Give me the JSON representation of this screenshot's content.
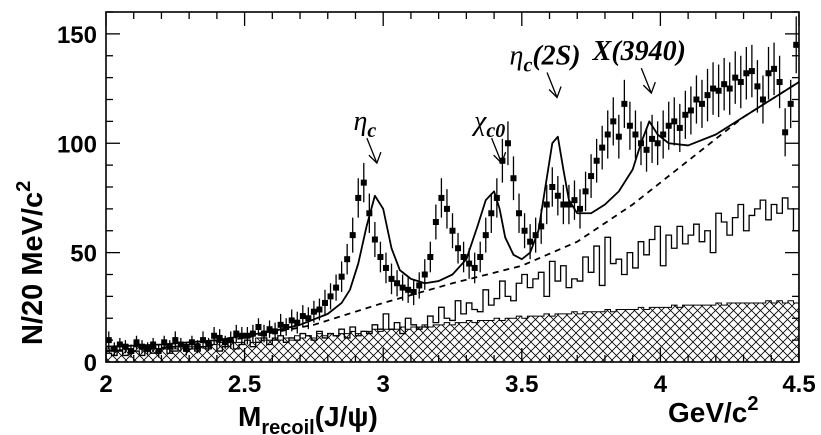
{
  "chart_data": {
    "type": "scatter",
    "xlabel_main": "M",
    "xlabel_sub": "recoil",
    "xlabel_tail": "(J/ψ)",
    "xunit_main": "GeV/c",
    "xunit_sup": "2",
    "ylabel_main": "N/20 MeV/c",
    "ylabel_sup": "2",
    "xlim": [
      2.0,
      4.5
    ],
    "ylim": [
      0,
      160
    ],
    "xticks": [
      "2",
      "2.5",
      "3",
      "3.5",
      "4",
      "4.5"
    ],
    "xtick_values": [
      2.0,
      2.5,
      3.0,
      3.5,
      4.0,
      4.5
    ],
    "yticks": [
      "0",
      "50",
      "100",
      "150"
    ],
    "ytick_values": [
      0,
      50,
      100,
      150
    ],
    "colors": {
      "ink": "#000000",
      "background": "#ffffff"
    },
    "annotations": [
      {
        "id": "etac",
        "main": "η",
        "sub": "c",
        "sup": "",
        "x": 2.97,
        "y": 90
      },
      {
        "id": "chic0",
        "main": "χ",
        "sub": "c0",
        "sup": "",
        "x": 3.42,
        "y": 90
      },
      {
        "id": "etac2s",
        "main": "η",
        "sub": "c",
        "sup": "(2S)",
        "x": 3.62,
        "y": 120
      },
      {
        "id": "x3940",
        "main": "X(3940)",
        "sub": "",
        "sup": "",
        "x": 3.96,
        "y": 122
      }
    ],
    "series": [
      {
        "role": "data",
        "x": [
          2.01,
          2.03,
          2.05,
          2.07,
          2.09,
          2.11,
          2.13,
          2.15,
          2.17,
          2.19,
          2.21,
          2.23,
          2.25,
          2.27,
          2.29,
          2.31,
          2.33,
          2.35,
          2.37,
          2.39,
          2.41,
          2.43,
          2.45,
          2.47,
          2.49,
          2.51,
          2.53,
          2.55,
          2.57,
          2.59,
          2.61,
          2.63,
          2.65,
          2.67,
          2.69,
          2.71,
          2.73,
          2.75,
          2.77,
          2.79,
          2.81,
          2.83,
          2.85,
          2.87,
          2.89,
          2.91,
          2.93,
          2.95,
          2.97,
          2.99,
          3.01,
          3.03,
          3.05,
          3.07,
          3.09,
          3.11,
          3.13,
          3.15,
          3.17,
          3.19,
          3.21,
          3.23,
          3.25,
          3.27,
          3.29,
          3.31,
          3.33,
          3.35,
          3.37,
          3.39,
          3.41,
          3.43,
          3.45,
          3.47,
          3.49,
          3.51,
          3.53,
          3.55,
          3.57,
          3.59,
          3.61,
          3.63,
          3.65,
          3.67,
          3.69,
          3.71,
          3.73,
          3.75,
          3.77,
          3.79,
          3.81,
          3.83,
          3.85,
          3.87,
          3.89,
          3.91,
          3.93,
          3.95,
          3.97,
          3.99,
          4.01,
          4.03,
          4.05,
          4.07,
          4.09,
          4.11,
          4.13,
          4.15,
          4.17,
          4.19,
          4.21,
          4.23,
          4.25,
          4.27,
          4.29,
          4.31,
          4.33,
          4.35,
          4.37,
          4.39,
          4.41,
          4.43,
          4.45,
          4.47,
          4.49
        ],
        "y": [
          10,
          6,
          8,
          7,
          5,
          9,
          7,
          6,
          8,
          5,
          9,
          7,
          10,
          8,
          6,
          9,
          7,
          10,
          8,
          12,
          11,
          9,
          10,
          13,
          12,
          12,
          13,
          16,
          13,
          15,
          14,
          17,
          16,
          19,
          18,
          21,
          20,
          23,
          24,
          27,
          30,
          34,
          39,
          47,
          58,
          75,
          82,
          68,
          56,
          48,
          43,
          38,
          36,
          34,
          33,
          32,
          35,
          40,
          48,
          64,
          75,
          70,
          60,
          52,
          48,
          45,
          43,
          48,
          58,
          68,
          75,
          92,
          100,
          84,
          68,
          60,
          55,
          58,
          62,
          72,
          80,
          76,
          72,
          72,
          74,
          70,
          78,
          85,
          92,
          98,
          104,
          110,
          103,
          118,
          108,
          104,
          100,
          97,
          102,
          100,
          104,
          108,
          110,
          107,
          113,
          115,
          120,
          118,
          122,
          125,
          124,
          127,
          125,
          130,
          128,
          132,
          133,
          126,
          120,
          132,
          134,
          128,
          105,
          118,
          145
        ],
        "yerr": [
          4,
          3,
          3,
          3,
          3,
          3,
          3,
          3,
          3,
          3,
          3,
          3,
          4,
          3,
          3,
          3,
          3,
          4,
          3,
          4,
          4,
          3,
          4,
          4,
          4,
          4,
          4,
          4,
          4,
          4,
          4,
          5,
          4,
          5,
          5,
          5,
          5,
          5,
          5,
          6,
          6,
          6,
          7,
          7,
          8,
          9,
          9,
          9,
          8,
          7,
          7,
          7,
          6,
          6,
          6,
          6,
          6,
          7,
          7,
          8,
          9,
          9,
          8,
          7,
          7,
          7,
          7,
          7,
          8,
          9,
          9,
          10,
          10,
          10,
          9,
          8,
          8,
          8,
          8,
          9,
          9,
          9,
          9,
          9,
          9,
          9,
          9,
          10,
          10,
          10,
          11,
          11,
          10,
          11,
          11,
          11,
          10,
          10,
          11,
          10,
          11,
          11,
          11,
          11,
          11,
          11,
          11,
          11,
          12,
          12,
          12,
          12,
          12,
          12,
          12,
          12,
          12,
          12,
          11,
          12,
          12,
          12,
          11,
          11,
          13
        ]
      },
      {
        "role": "fit",
        "x": [
          2.0,
          2.1,
          2.2,
          2.3,
          2.4,
          2.5,
          2.6,
          2.7,
          2.8,
          2.85,
          2.88,
          2.91,
          2.94,
          2.97,
          3.0,
          3.03,
          3.06,
          3.1,
          3.15,
          3.2,
          3.25,
          3.3,
          3.34,
          3.37,
          3.4,
          3.42,
          3.44,
          3.47,
          3.5,
          3.53,
          3.56,
          3.59,
          3.61,
          3.63,
          3.65,
          3.67,
          3.7,
          3.75,
          3.8,
          3.85,
          3.9,
          3.93,
          3.96,
          3.99,
          4.03,
          4.1,
          4.2,
          4.3,
          4.4,
          4.5
        ],
        "y": [
          7,
          7.5,
          8,
          9,
          10,
          12,
          14,
          17,
          22,
          27,
          33,
          45,
          62,
          76,
          70,
          52,
          42,
          38,
          36,
          37,
          40,
          47,
          62,
          74,
          78,
          70,
          57,
          49,
          47,
          50,
          60,
          84,
          100,
          103,
          88,
          74,
          68,
          68,
          72,
          78,
          88,
          100,
          110,
          104,
          100,
          99,
          104,
          112,
          120,
          128
        ]
      },
      {
        "role": "background-fit",
        "x": [
          2.0,
          2.25,
          2.5,
          2.75,
          3.0,
          3.25,
          3.5,
          3.7,
          3.9,
          4.1,
          4.3,
          4.5
        ],
        "y": [
          5,
          7,
          11,
          17,
          27,
          36,
          44,
          55,
          72,
          92,
          112,
          128
        ]
      },
      {
        "role": "histogram",
        "edges_start": 2.0,
        "bin_width": 0.02,
        "values": [
          4,
          3,
          5,
          3,
          4,
          5,
          3,
          6,
          4,
          5,
          6,
          4,
          5,
          7,
          5,
          6,
          5,
          7,
          6,
          8,
          5,
          7,
          9,
          6,
          8,
          10,
          7,
          9,
          11,
          8,
          10,
          12,
          9,
          11,
          10,
          13,
          12,
          10,
          14,
          11,
          13,
          12,
          15,
          11,
          16,
          12,
          14,
          13,
          17,
          15,
          22,
          15,
          18,
          13,
          20,
          17,
          15,
          16,
          21,
          18,
          25,
          20,
          19,
          28,
          22,
          27,
          24,
          23,
          33,
          26,
          29,
          37,
          30,
          28,
          36,
          40,
          34,
          38,
          41,
          30,
          46,
          37,
          44,
          34,
          38,
          37,
          48,
          41,
          53,
          35,
          57,
          45,
          47,
          40,
          50,
          43,
          55,
          49,
          56,
          62,
          44,
          58,
          52,
          62,
          54,
          58,
          63,
          55,
          60,
          50,
          68,
          64,
          58,
          66,
          72,
          60,
          67,
          70,
          74,
          65,
          72,
          68,
          75,
          70,
          60
        ]
      },
      {
        "role": "hatched-background",
        "edges_start": 2.0,
        "bin_width": 0.02,
        "values": [
          6,
          7,
          5,
          8,
          6,
          7,
          6,
          5,
          7,
          6,
          8,
          7,
          6,
          7,
          8,
          7,
          8,
          7,
          9,
          8,
          9,
          8,
          10,
          9,
          9,
          10,
          9,
          11,
          10,
          10,
          11,
          10,
          11,
          10,
          12,
          11,
          12,
          11,
          13,
          12,
          13,
          12,
          13,
          13,
          14,
          13,
          14,
          14,
          15,
          14,
          15,
          15,
          15,
          16,
          15,
          16,
          16,
          17,
          16,
          17,
          17,
          18,
          17,
          18,
          18,
          19,
          18,
          19,
          19,
          19,
          20,
          19,
          20,
          20,
          21,
          20,
          21,
          21,
          21,
          22,
          21,
          22,
          22,
          22,
          23,
          22,
          23,
          23,
          23,
          23,
          24,
          23,
          24,
          24,
          24,
          24,
          25,
          24,
          25,
          25,
          25,
          25,
          26,
          25,
          26,
          26,
          26,
          26,
          26,
          26,
          27,
          26,
          27,
          27,
          27,
          27,
          27,
          27,
          27,
          28,
          27,
          28,
          27,
          28,
          27
        ]
      }
    ]
  }
}
